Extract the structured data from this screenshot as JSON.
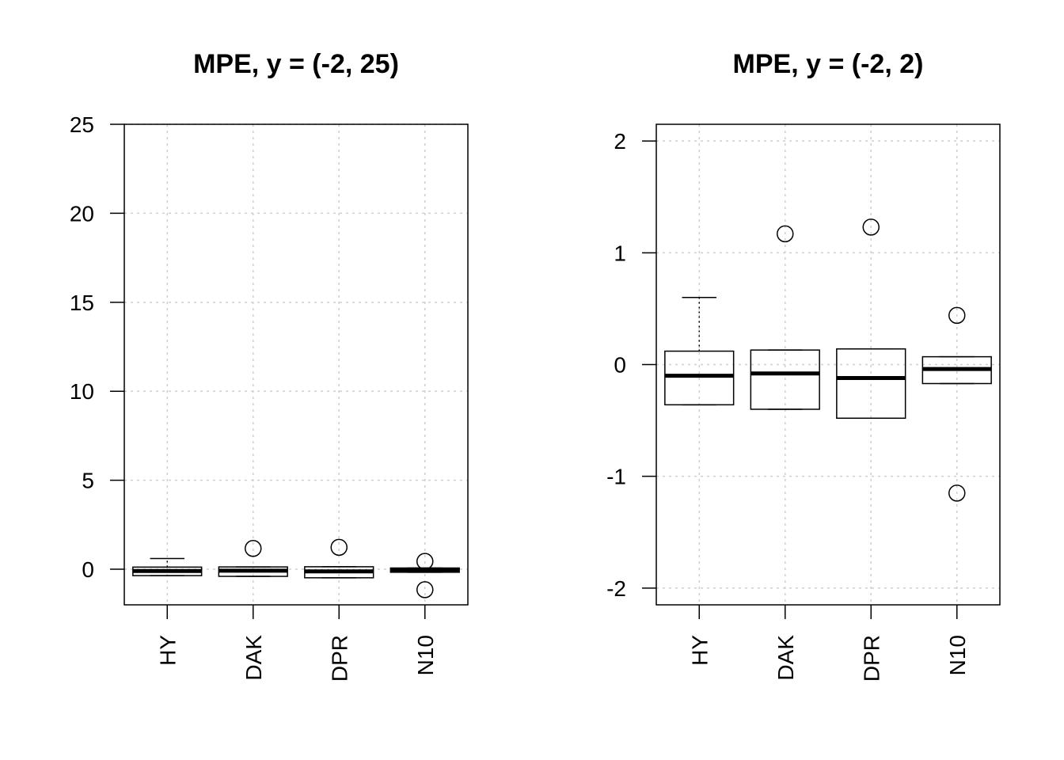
{
  "chart_data": [
    {
      "type": "box",
      "title": "MPE, y = (-2, 25)",
      "xlabel": "",
      "ylabel": "",
      "ylim": [
        -2,
        25
      ],
      "y_ticks": [
        0,
        5,
        10,
        15,
        20,
        25
      ],
      "categories": [
        "HY",
        "DAK",
        "DPR",
        "N10"
      ],
      "grid": true,
      "boxes": [
        {
          "name": "HY",
          "whisker_low": -0.36,
          "q1": -0.36,
          "median": -0.1,
          "q3": 0.12,
          "whisker_high": 0.6,
          "outliers": []
        },
        {
          "name": "DAK",
          "whisker_low": -0.4,
          "q1": -0.4,
          "median": -0.08,
          "q3": 0.13,
          "whisker_high": 0.13,
          "outliers": [
            1.17
          ]
        },
        {
          "name": "DPR",
          "whisker_low": -0.48,
          "q1": -0.48,
          "median": -0.12,
          "q3": 0.14,
          "whisker_high": 0.14,
          "outliers": [
            1.23
          ]
        },
        {
          "name": "N10",
          "whisker_low": -0.17,
          "q1": -0.17,
          "median": -0.04,
          "q3": 0.07,
          "whisker_high": 0.07,
          "outliers": [
            0.44,
            -1.15
          ]
        }
      ]
    },
    {
      "type": "box",
      "title": "MPE, y = (-2, 2)",
      "xlabel": "",
      "ylabel": "",
      "ylim": [
        -2.15,
        2.15
      ],
      "y_ticks": [
        -2,
        -1,
        0,
        1,
        2
      ],
      "categories": [
        "HY",
        "DAK",
        "DPR",
        "N10"
      ],
      "grid": true,
      "boxes": [
        {
          "name": "HY",
          "whisker_low": -0.36,
          "q1": -0.36,
          "median": -0.1,
          "q3": 0.12,
          "whisker_high": 0.6,
          "outliers": []
        },
        {
          "name": "DAK",
          "whisker_low": -0.4,
          "q1": -0.4,
          "median": -0.08,
          "q3": 0.13,
          "whisker_high": 0.13,
          "outliers": [
            1.17
          ]
        },
        {
          "name": "DPR",
          "whisker_low": -0.48,
          "q1": -0.48,
          "median": -0.12,
          "q3": 0.14,
          "whisker_high": 0.14,
          "outliers": [
            1.23
          ]
        },
        {
          "name": "N10",
          "whisker_low": -0.17,
          "q1": -0.17,
          "median": -0.04,
          "q3": 0.07,
          "whisker_high": 0.07,
          "outliers": [
            0.44,
            -1.15
          ]
        }
      ]
    }
  ]
}
